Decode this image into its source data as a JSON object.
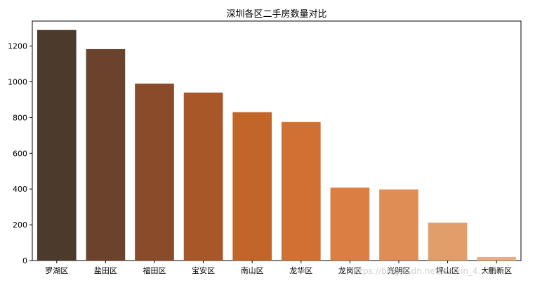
{
  "chart_data": {
    "type": "bar",
    "title": "深圳各区二手房数量对比",
    "xlabel": "",
    "ylabel": "",
    "categories": [
      "罗湖区",
      "盐田区",
      "福田区",
      "宝安区",
      "南山区",
      "龙华区",
      "龙岗区",
      "光明区",
      "坪山区",
      "大鹏新区"
    ],
    "values": [
      1290,
      1183,
      990,
      940,
      830,
      775,
      408,
      398,
      212,
      20
    ],
    "colors": [
      "#4c3a2d",
      "#6b432d",
      "#8a4b2b",
      "#a85729",
      "#c26529",
      "#d26f32",
      "#db7e44",
      "#df8c55",
      "#e29e6a",
      "#e6b07e"
    ],
    "ylim": [
      0,
      1340
    ],
    "yticks": [
      0,
      200,
      400,
      600,
      800,
      1000,
      1200
    ],
    "grid": false,
    "legend": "none"
  },
  "watermark": {
    "text": "https://blog.csdn.net/weixin_4...17"
  }
}
